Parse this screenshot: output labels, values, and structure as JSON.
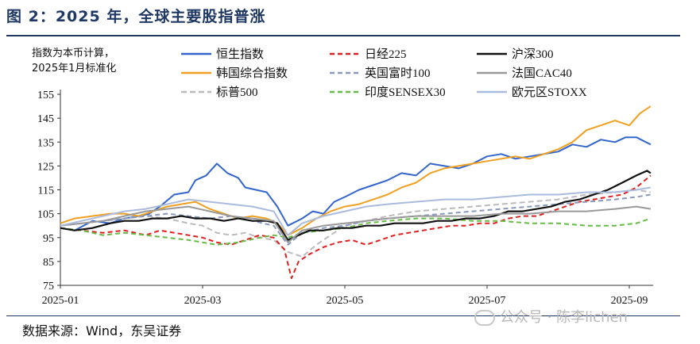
{
  "title": "图 2：2025 年，全球主要股指普涨",
  "source": "数据来源：Wind，东吴证券",
  "watermark": "公众号 · 陈李lichen",
  "chart_data": {
    "type": "line",
    "ylabel_line1": "指数为本币计算，",
    "ylabel_line2": "2025年1月标准化",
    "ylim": [
      75,
      155
    ],
    "yticks": [
      75,
      85,
      95,
      105,
      115,
      125,
      135,
      145,
      155
    ],
    "xticks": [
      "2025-01",
      "2025-03",
      "2025-05",
      "2025-07",
      "2025-09"
    ],
    "xtick_positions": [
      0,
      2,
      4,
      6,
      8
    ],
    "x_range": [
      0,
      8.3
    ],
    "grid": false,
    "legend_position": "top",
    "series": [
      {
        "name": "恒生指数",
        "color": "#3366cc",
        "dash": "",
        "x": [
          0,
          0.2,
          0.45,
          0.7,
          0.9,
          1.1,
          1.25,
          1.4,
          1.6,
          1.8,
          1.9,
          2.05,
          2.2,
          2.35,
          2.5,
          2.6,
          2.75,
          2.9,
          3.05,
          3.2,
          3.4,
          3.55,
          3.7,
          3.85,
          4.0,
          4.2,
          4.4,
          4.6,
          4.8,
          5.0,
          5.2,
          5.4,
          5.6,
          5.8,
          6.0,
          6.2,
          6.4,
          6.6,
          6.8,
          7.0,
          7.2,
          7.4,
          7.6,
          7.8,
          7.95,
          8.1,
          8.3
        ],
        "values": [
          99,
          98,
          102,
          101,
          103,
          104,
          105,
          108,
          113,
          114,
          119,
          121,
          126,
          122,
          120,
          116,
          115,
          114,
          108,
          100,
          103,
          106,
          105,
          110,
          112,
          115,
          117,
          119,
          122,
          121,
          126,
          125,
          124,
          126,
          129,
          130,
          128,
          129,
          130,
          131,
          134,
          133,
          136,
          135,
          137,
          137,
          134
        ]
      },
      {
        "name": "韩国综合指数",
        "color": "#f0a020",
        "dash": "",
        "x": [
          0,
          0.2,
          0.45,
          0.7,
          0.9,
          1.1,
          1.3,
          1.5,
          1.7,
          1.9,
          2.1,
          2.3,
          2.5,
          2.7,
          2.9,
          3.05,
          3.2,
          3.4,
          3.6,
          3.8,
          4.0,
          4.2,
          4.4,
          4.6,
          4.8,
          5.0,
          5.2,
          5.4,
          5.6,
          5.8,
          6.0,
          6.2,
          6.4,
          6.6,
          6.8,
          7.0,
          7.2,
          7.4,
          7.6,
          7.8,
          8.0,
          8.15,
          8.3
        ],
        "values": [
          101,
          103,
          104,
          105,
          105,
          104,
          106,
          108,
          109,
          110,
          107,
          105,
          103,
          104,
          103,
          101,
          96,
          99,
          103,
          106,
          108,
          109,
          111,
          113,
          116,
          118,
          122,
          124,
          125,
          126,
          127,
          128,
          129,
          128,
          130,
          132,
          135,
          140,
          142,
          144,
          142,
          147,
          150
        ]
      },
      {
        "name": "标普500",
        "color": "#bbbbbb",
        "dash": "7,4",
        "x": [
          0,
          0.3,
          0.6,
          0.9,
          1.2,
          1.5,
          1.8,
          2.0,
          2.2,
          2.4,
          2.6,
          2.8,
          3.0,
          3.2,
          3.4,
          3.6,
          3.8,
          4.0,
          4.3,
          4.6,
          5.0,
          5.4,
          5.8,
          6.2,
          6.6,
          7.0,
          7.4,
          7.8,
          8.1,
          8.3
        ],
        "values": [
          100,
          101,
          102,
          103,
          104,
          103,
          101,
          100,
          97,
          96,
          97,
          95,
          94,
          89,
          87,
          92,
          96,
          100,
          102,
          104,
          106,
          107,
          108,
          109,
          110,
          111,
          113,
          114,
          115,
          114
        ]
      },
      {
        "name": "日经225",
        "color": "#e02020",
        "dash": "6,4",
        "x": [
          0,
          0.3,
          0.6,
          0.9,
          1.2,
          1.4,
          1.6,
          1.8,
          2.0,
          2.2,
          2.4,
          2.6,
          2.8,
          3.0,
          3.15,
          3.25,
          3.35,
          3.5,
          3.7,
          3.9,
          4.1,
          4.3,
          4.5,
          4.7,
          4.9,
          5.1,
          5.3,
          5.5,
          5.7,
          5.9,
          6.1,
          6.3,
          6.5,
          6.7,
          6.9,
          7.1,
          7.3,
          7.5,
          7.7,
          7.9,
          8.1,
          8.3
        ],
        "values": [
          99,
          98,
          97,
          98,
          96,
          98,
          97,
          96,
          95,
          93,
          92,
          94,
          96,
          95,
          90,
          78,
          85,
          88,
          91,
          93,
          94,
          92,
          94,
          96,
          97,
          98,
          99,
          100,
          100,
          101,
          101,
          103,
          104,
          104,
          106,
          108,
          110,
          111,
          112,
          113,
          116,
          121
        ]
      },
      {
        "name": "英国富时100",
        "color": "#8899bb",
        "dash": "6,4",
        "x": [
          0,
          0.3,
          0.6,
          0.9,
          1.2,
          1.5,
          1.8,
          2.1,
          2.4,
          2.7,
          3.0,
          3.2,
          3.4,
          3.7,
          4.0,
          4.3,
          4.6,
          5.0,
          5.4,
          5.8,
          6.2,
          6.6,
          7.0,
          7.4,
          7.8,
          8.1,
          8.3
        ],
        "values": [
          100,
          101,
          102,
          103,
          104,
          105,
          104,
          103,
          104,
          102,
          100,
          92,
          97,
          99,
          100,
          102,
          103,
          104,
          105,
          106,
          107,
          108,
          109,
          110,
          111,
          112,
          113
        ]
      },
      {
        "name": "印度SENSEX30",
        "color": "#66bb44",
        "dash": "6,4",
        "x": [
          0,
          0.3,
          0.6,
          0.9,
          1.2,
          1.5,
          1.8,
          2.0,
          2.2,
          2.5,
          2.8,
          3.0,
          3.2,
          3.4,
          3.7,
          4.0,
          4.3,
          4.6,
          5.0,
          5.4,
          5.8,
          6.2,
          6.6,
          7.0,
          7.4,
          7.8,
          8.1,
          8.3
        ],
        "values": [
          99,
          98,
          96,
          97,
          96,
          95,
          94,
          93,
          92,
          93,
          95,
          96,
          95,
          97,
          98,
          99,
          101,
          102,
          103,
          103,
          102,
          102,
          101,
          101,
          100,
          100,
          101,
          103
        ]
      },
      {
        "name": "沪深300",
        "color": "#111111",
        "dash": "",
        "x": [
          0,
          0.2,
          0.45,
          0.7,
          0.9,
          1.1,
          1.3,
          1.5,
          1.7,
          1.9,
          2.1,
          2.3,
          2.5,
          2.7,
          2.9,
          3.05,
          3.2,
          3.35,
          3.5,
          3.7,
          3.9,
          4.1,
          4.3,
          4.5,
          4.7,
          4.9,
          5.1,
          5.3,
          5.5,
          5.7,
          5.9,
          6.1,
          6.3,
          6.5,
          6.7,
          6.9,
          7.1,
          7.3,
          7.5,
          7.7,
          7.9,
          8.1,
          8.25,
          8.3
        ],
        "values": [
          99,
          98,
          99,
          101,
          102,
          102,
          103,
          103,
          104,
          103,
          103,
          102,
          103,
          102,
          102,
          101,
          94,
          96,
          98,
          98,
          99,
          99,
          100,
          100,
          101,
          101,
          101,
          102,
          102,
          103,
          103,
          104,
          106,
          106,
          107,
          108,
          110,
          111,
          113,
          115,
          118,
          121,
          123,
          122
        ]
      },
      {
        "name": "法国CAC40",
        "color": "#999999",
        "dash": "",
        "x": [
          0,
          0.3,
          0.6,
          0.9,
          1.2,
          1.5,
          1.8,
          2.1,
          2.4,
          2.7,
          3.0,
          3.2,
          3.4,
          3.7,
          4.0,
          4.3,
          4.6,
          5.0,
          5.4,
          5.8,
          6.2,
          6.6,
          7.0,
          7.4,
          7.8,
          8.1,
          8.3
        ],
        "values": [
          100,
          101,
          102,
          104,
          106,
          107,
          108,
          106,
          104,
          103,
          102,
          93,
          98,
          100,
          101,
          102,
          103,
          104,
          104,
          104,
          105,
          105,
          106,
          106,
          107,
          108,
          107
        ]
      },
      {
        "name": "欧元区STOXX",
        "color": "#aabbdd",
        "dash": "",
        "x": [
          0,
          0.3,
          0.6,
          0.9,
          1.2,
          1.5,
          1.8,
          2.1,
          2.4,
          2.7,
          3.0,
          3.2,
          3.4,
          3.7,
          4.0,
          4.3,
          4.6,
          5.0,
          5.4,
          5.8,
          6.2,
          6.6,
          7.0,
          7.4,
          7.8,
          8.1,
          8.3
        ],
        "values": [
          100,
          102,
          104,
          106,
          107,
          109,
          111,
          110,
          109,
          108,
          106,
          96,
          101,
          104,
          106,
          108,
          109,
          110,
          111,
          111,
          112,
          113,
          113,
          114,
          114,
          115,
          116
        ]
      }
    ]
  }
}
